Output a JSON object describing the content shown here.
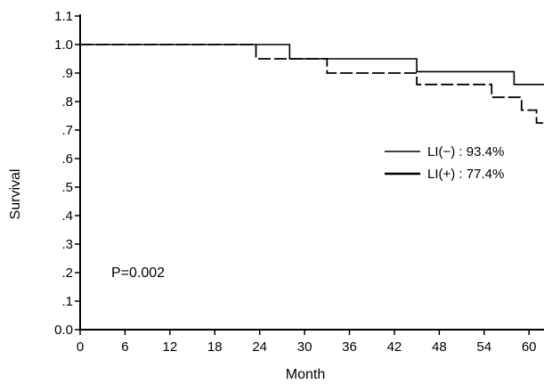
{
  "chart_data": {
    "type": "line",
    "xlabel": "Month",
    "ylabel": "Survival",
    "xlim": [
      0,
      62
    ],
    "ylim": [
      0.0,
      1.1
    ],
    "xticks": [
      0,
      6,
      12,
      18,
      24,
      30,
      36,
      42,
      48,
      54,
      60
    ],
    "xtick_labels": [
      "0",
      "6",
      "12",
      "18",
      "24",
      "30",
      "36",
      "42",
      "48",
      "54",
      "60"
    ],
    "yticks": [
      0.0,
      0.1,
      0.2,
      0.3,
      0.4,
      0.5,
      0.6,
      0.7,
      0.8,
      0.9,
      1.0,
      1.1
    ],
    "ytick_labels": [
      "0.0",
      ".1",
      ".2",
      ".3",
      ".4",
      ".5",
      ".6",
      ".7",
      ".8",
      ".9",
      "1.0",
      "1.1"
    ],
    "series": [
      {
        "name": "LI(−) : 93.4%",
        "style": "solid",
        "x": [
          0,
          28,
          28,
          45,
          45,
          58,
          58,
          62
        ],
        "y": [
          1.0,
          1.0,
          0.95,
          0.95,
          0.905,
          0.905,
          0.86,
          0.86
        ]
      },
      {
        "name": "LI(+) : 77.4%",
        "style": "dashed",
        "x": [
          0,
          23.5,
          23.5,
          33,
          33,
          45,
          45,
          55,
          55,
          59,
          59,
          61,
          61,
          62
        ],
        "y": [
          1.0,
          1.0,
          0.95,
          0.95,
          0.9,
          0.9,
          0.86,
          0.86,
          0.815,
          0.815,
          0.77,
          0.77,
          0.725,
          0.725
        ]
      }
    ],
    "legend_position": "right",
    "annotations": [
      "P=0.002"
    ],
    "grid": false
  }
}
